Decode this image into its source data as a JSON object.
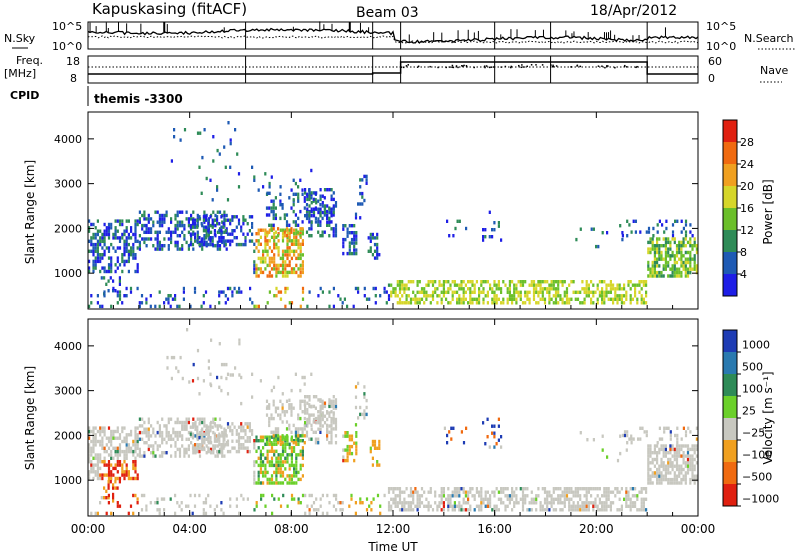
{
  "header": {
    "title": "Kapuskasing (fitACF)",
    "beam": "Beam 03",
    "date": "18/Apr/2012"
  },
  "status_panels": {
    "nsky_label": "N.Sky",
    "nsky_ticks": [
      "10^5",
      "10^0"
    ],
    "nsearch_label": "N.Search",
    "nsearch_ticks": [
      "10^5",
      "10^0"
    ],
    "freq_label_line1": "Freq.",
    "freq_label_line2": "[MHz]",
    "freq_ticks": [
      "18",
      "8"
    ],
    "nave_label": "Nave",
    "nave_ticks": [
      "60",
      "0"
    ],
    "cpid_label": "CPID",
    "cpid_text": "themis -3300"
  },
  "chart_data": [
    {
      "type": "heatmap",
      "name": "power",
      "ylabel": "Slant Range [km]",
      "yticks": [
        1000,
        2000,
        3000,
        4000
      ],
      "ylim": [
        200,
        4600
      ],
      "xlim_hours": [
        0,
        24
      ],
      "colorbar": {
        "label": "Power [dB]",
        "ticks": [
          "4",
          "8",
          "12",
          "16",
          "20",
          "24",
          "28"
        ],
        "colors": [
          "#1e1ee6",
          "#1e5ab4",
          "#2e8b57",
          "#6bbf2a",
          "#d6d62a",
          "#f0a020",
          "#f06a10",
          "#e02010"
        ]
      }
    },
    {
      "type": "heatmap",
      "name": "velocity",
      "ylabel": "Slant Range [km]",
      "yticks": [
        1000,
        2000,
        3000,
        4000
      ],
      "ylim": [
        200,
        4600
      ],
      "xlim_hours": [
        0,
        24
      ],
      "xlabel": "Time UT",
      "xticks": [
        "00:00",
        "04:00",
        "08:00",
        "12:00",
        "16:00",
        "20:00",
        "00:00"
      ],
      "colorbar": {
        "label": "Velocity [m s⁻¹]",
        "ticks": [
          "1000",
          "500",
          "100",
          "25",
          "−25",
          "−100",
          "−500",
          "−1000"
        ],
        "colors": [
          "#1e3cb4",
          "#2a7ab0",
          "#2e8b57",
          "#6bd02a",
          "#c8c8c0",
          "#f0a020",
          "#f06a10",
          "#e02010"
        ]
      }
    }
  ]
}
